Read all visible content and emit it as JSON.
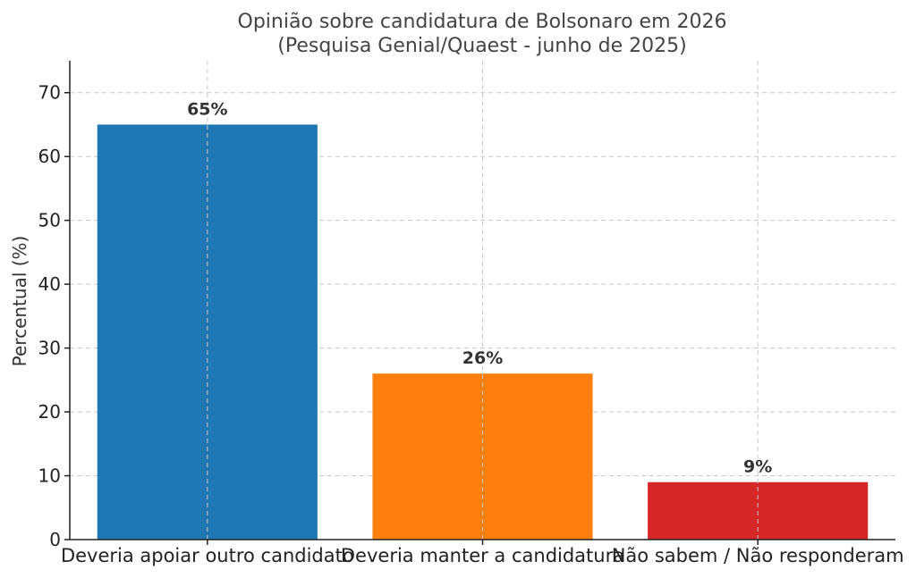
{
  "chart_data": {
    "type": "bar",
    "title": "Opinião sobre candidatura de Bolsonaro em 2026",
    "subtitle": "(Pesquisa Genial/Quaest - junho de 2025)",
    "xlabel": "",
    "ylabel": "Percentual (%)",
    "ylim": [
      0,
      75
    ],
    "yticks": [
      0,
      10,
      20,
      30,
      40,
      50,
      60,
      70
    ],
    "grid": true,
    "categories": [
      "Deveria apoiar outro candidato",
      "Deveria manter a candidatura",
      "Não sabem / Não responderam"
    ],
    "values": [
      65,
      26,
      9
    ],
    "data_labels": [
      "65%",
      "26%",
      "9%"
    ],
    "colors": [
      "#1f77b4",
      "#ff7f0e",
      "#d62728"
    ]
  }
}
